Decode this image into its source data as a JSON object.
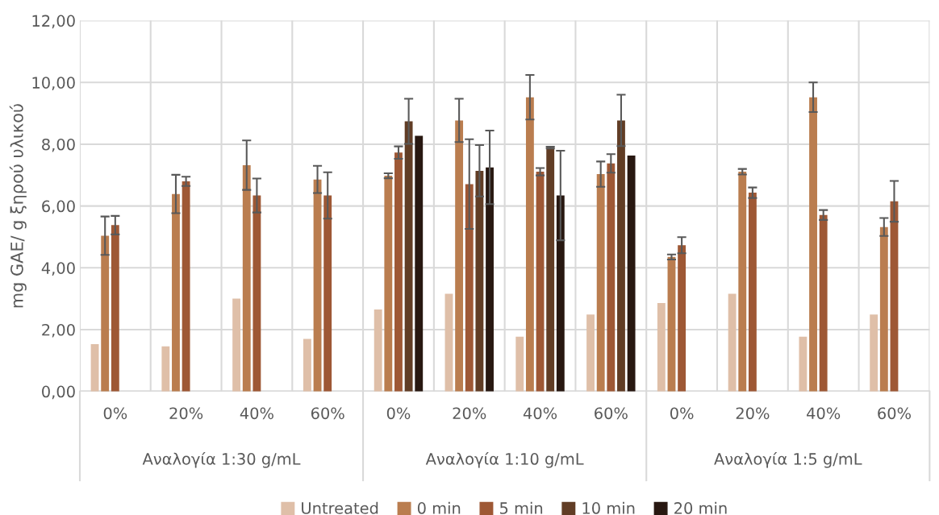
{
  "chart_data": {
    "type": "bar",
    "ylabel": "mg GAE/ g ξηρού υλικού",
    "categories": [
      "0%",
      "20%",
      "40%",
      "60%",
      "0%",
      "20%",
      "40%",
      "60%",
      "0%",
      "20%",
      "40%",
      "60%"
    ],
    "annotations": [
      "Αναλογία 1:30 g/mL",
      "Αναλογία 1:10 g/mL",
      "Αναλογία 1:5 g/mL"
    ],
    "series": [
      {
        "name": "Untreated",
        "color": "#dfbfa8",
        "values": [
          1.53,
          1.46,
          3.0,
          1.7,
          2.65,
          3.16,
          1.77,
          2.49,
          2.86,
          3.16,
          1.77,
          2.49
        ]
      },
      {
        "name": "0 min",
        "color": "#ba7d4f",
        "values": [
          5.04,
          6.39,
          7.32,
          6.86,
          6.98,
          8.77,
          9.52,
          7.03,
          4.35,
          7.11,
          9.52,
          5.32
        ],
        "errors": [
          0.62,
          0.62,
          0.8,
          0.44,
          0.08,
          0.7,
          0.72,
          0.41,
          0.08,
          0.09,
          0.48,
          0.29
        ]
      },
      {
        "name": "5 min",
        "color": "#9e5835",
        "values": [
          5.38,
          6.8,
          6.34,
          6.34,
          7.73,
          6.71,
          7.11,
          7.38,
          4.73,
          6.43,
          5.71,
          6.15
        ],
        "errors": [
          0.3,
          0.15,
          0.55,
          0.75,
          0.2,
          1.45,
          0.12,
          0.3,
          0.26,
          0.17,
          0.16,
          0.66
        ]
      },
      {
        "name": "10 min",
        "color": "#613d25",
        "values": [
          null,
          null,
          null,
          null,
          8.74,
          7.14,
          7.89,
          8.77,
          null,
          null,
          null,
          null
        ],
        "errors": [
          null,
          null,
          null,
          null,
          0.73,
          0.83,
          0.03,
          0.83,
          null,
          null,
          null,
          null
        ]
      },
      {
        "name": "20 min",
        "color": "#281811",
        "values": [
          null,
          null,
          null,
          null,
          8.27,
          7.25,
          6.34,
          7.63,
          null,
          null,
          null,
          null
        ],
        "errors": [
          null,
          null,
          null,
          null,
          null,
          1.19,
          1.45,
          null,
          null,
          null,
          null,
          null
        ]
      }
    ],
    "ylim": [
      0,
      12
    ],
    "yticks": [
      {
        "value": 0,
        "label": "0,00"
      },
      {
        "value": 2,
        "label": "2,00"
      },
      {
        "value": 4,
        "label": "4,00"
      },
      {
        "value": 6,
        "label": "6,00"
      },
      {
        "value": 8,
        "label": "8,00"
      },
      {
        "value": 10,
        "label": "10,00"
      },
      {
        "value": 12,
        "label": "12,00"
      }
    ],
    "grid": true,
    "legend": "bottom"
  }
}
